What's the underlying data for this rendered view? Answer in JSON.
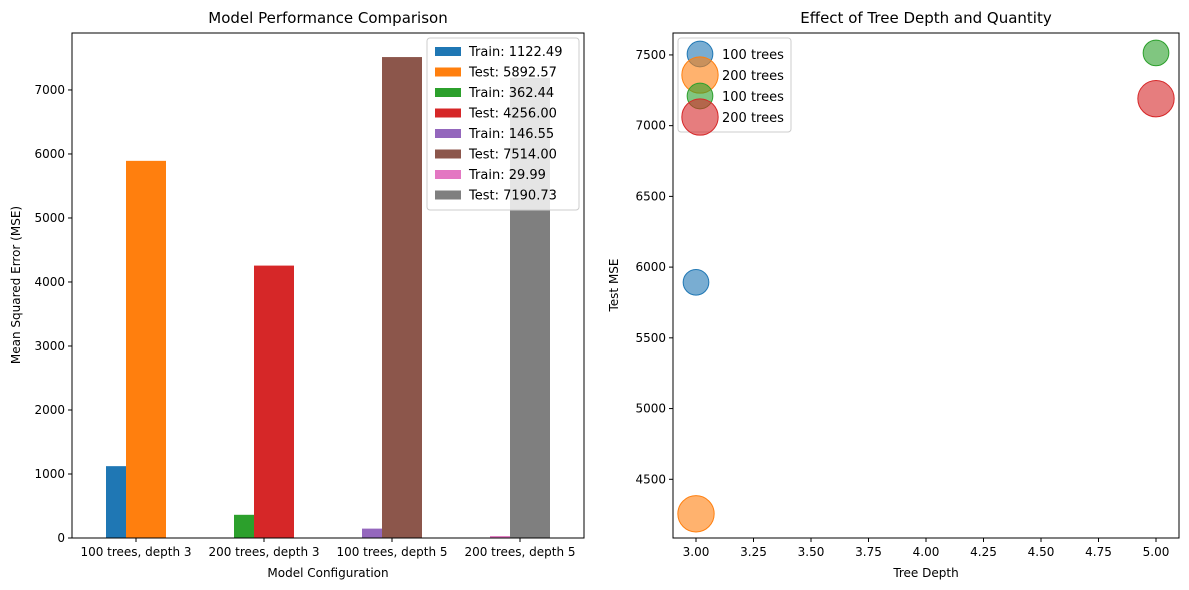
{
  "chart_data": [
    {
      "type": "bar",
      "title": "Model Performance Comparison",
      "xlabel": "Model Configuration",
      "ylabel": "Mean Squared Error (MSE)",
      "ylim": [
        0,
        7890
      ],
      "yticks": [
        0,
        1000,
        2000,
        3000,
        4000,
        5000,
        6000,
        7000
      ],
      "ytick_labels": [
        "0",
        "1000",
        "2000",
        "3000",
        "4000",
        "5000",
        "6000",
        "7000"
      ],
      "categories": [
        "100 trees, depth 3",
        "200 trees, depth 3",
        "100 trees, depth 5",
        "200 trees, depth 5"
      ],
      "legend_position": "top-right",
      "grid": false,
      "bars": [
        {
          "category_index": 0,
          "kind": "Train",
          "value": 1122.49,
          "legend": "Train: 1122.49",
          "color": "#1f77b4"
        },
        {
          "category_index": 0,
          "kind": "Test",
          "value": 5892.57,
          "legend": "Test: 5892.57",
          "color": "#ff7f0e"
        },
        {
          "category_index": 1,
          "kind": "Train",
          "value": 362.44,
          "legend": "Train: 362.44",
          "color": "#2ca02c"
        },
        {
          "category_index": 1,
          "kind": "Test",
          "value": 4256.0,
          "legend": "Test: 4256.00",
          "color": "#d62728"
        },
        {
          "category_index": 2,
          "kind": "Train",
          "value": 146.55,
          "legend": "Train: 146.55",
          "color": "#9467bd"
        },
        {
          "category_index": 2,
          "kind": "Test",
          "value": 7514.0,
          "legend": "Test: 7514.00",
          "color": "#8c564b"
        },
        {
          "category_index": 3,
          "kind": "Train",
          "value": 29.99,
          "legend": "Train: 29.99",
          "color": "#e377c2"
        },
        {
          "category_index": 3,
          "kind": "Test",
          "value": 7190.73,
          "legend": "Test: 7190.73",
          "color": "#7f7f7f"
        }
      ]
    },
    {
      "type": "scatter",
      "title": "Effect of Tree Depth and Quantity",
      "xlabel": "Tree Depth",
      "ylabel": "Test MSE",
      "xlim": [
        2.9,
        5.1
      ],
      "ylim": [
        4085,
        7655
      ],
      "xticks": [
        3.0,
        3.25,
        3.5,
        3.75,
        4.0,
        4.25,
        4.5,
        4.75,
        5.0
      ],
      "xtick_labels": [
        "3.00",
        "3.25",
        "3.50",
        "3.75",
        "4.00",
        "4.25",
        "4.50",
        "4.75",
        "5.00"
      ],
      "yticks": [
        4500,
        5000,
        5500,
        6000,
        6500,
        7000,
        7500
      ],
      "ytick_labels": [
        "4500",
        "5000",
        "5500",
        "6000",
        "6500",
        "7000",
        "7500"
      ],
      "legend_position": "top-left",
      "grid": false,
      "series": [
        {
          "name": "100 trees",
          "trees": 100,
          "x": 3,
          "y": 5892.57,
          "color": "#1f77b4"
        },
        {
          "name": "200 trees",
          "trees": 200,
          "x": 3,
          "y": 4256.0,
          "color": "#ff7f0e"
        },
        {
          "name": "100 trees",
          "trees": 100,
          "x": 5,
          "y": 7514.0,
          "color": "#2ca02c"
        },
        {
          "name": "200 trees",
          "trees": 200,
          "x": 5,
          "y": 7190.73,
          "color": "#d62728"
        }
      ]
    }
  ]
}
